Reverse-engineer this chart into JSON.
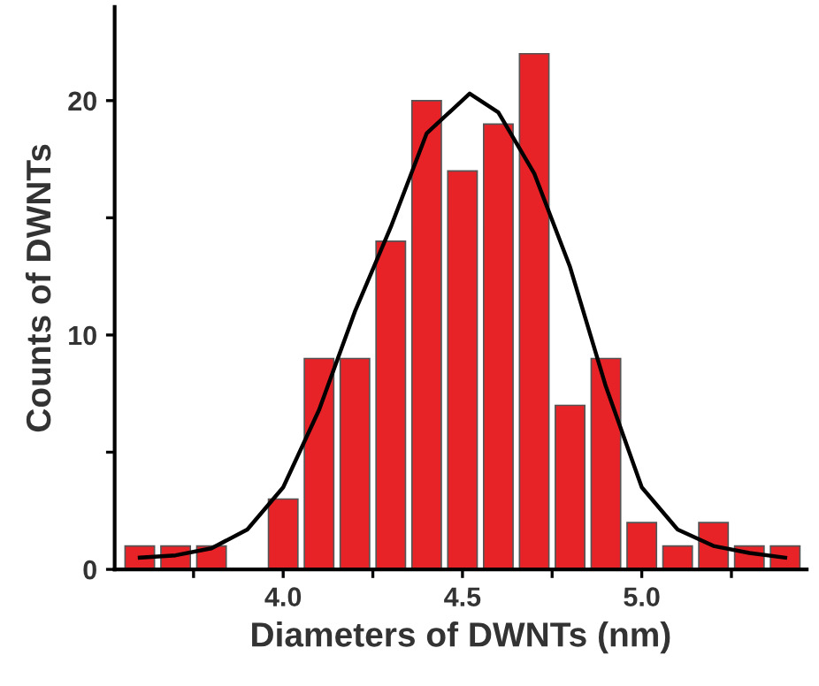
{
  "chart_data": {
    "type": "histogram",
    "xlabel": "Diameters of DWNTs (nm)",
    "ylabel": "Counts of DWNTs",
    "bins": [
      3.55,
      3.65,
      3.75,
      3.85,
      3.95,
      4.05,
      4.15,
      4.25,
      4.35,
      4.45,
      4.55,
      4.65,
      4.75,
      4.85,
      4.95,
      5.05,
      5.15,
      5.25,
      5.35,
      5.45
    ],
    "values": [
      1,
      1,
      1,
      0,
      3,
      9,
      9,
      14,
      20,
      17,
      19,
      22,
      7,
      9,
      2,
      1,
      2,
      1,
      1
    ],
    "color": "#e82328",
    "series": [
      {
        "type": "line",
        "color": "#000000",
        "x": [
          3.6,
          3.7,
          3.8,
          3.9,
          4.0,
          4.1,
          4.2,
          4.3,
          4.4,
          4.52,
          4.6,
          4.7,
          4.8,
          4.9,
          5.0,
          5.1,
          5.2,
          5.3,
          5.4
        ],
        "values": [
          0.5,
          0.6,
          0.9,
          1.7,
          3.5,
          6.8,
          11,
          14.6,
          18.6,
          20.3,
          19.5,
          16.9,
          12.9,
          7.8,
          3.5,
          1.7,
          1.0,
          0.7,
          0.5
        ]
      }
    ],
    "xlim": [
      3.53,
      5.46
    ],
    "ylim": [
      0,
      24
    ],
    "xticks": [
      {
        "value": 3.75,
        "label": null
      },
      {
        "value": 4.0,
        "label": "4.0"
      },
      {
        "value": 4.25,
        "label": null
      },
      4.5,
      {
        "value": 4.75,
        "label": null
      },
      {
        "value": 5.0,
        "label": "5.0"
      },
      {
        "value": 5.25,
        "label": null
      }
    ],
    "yticks": [
      0,
      {
        "value": 5,
        "label": null
      },
      10,
      {
        "value": 15,
        "label": null
      },
      20
    ],
    "grid": false,
    "legend": false
  }
}
